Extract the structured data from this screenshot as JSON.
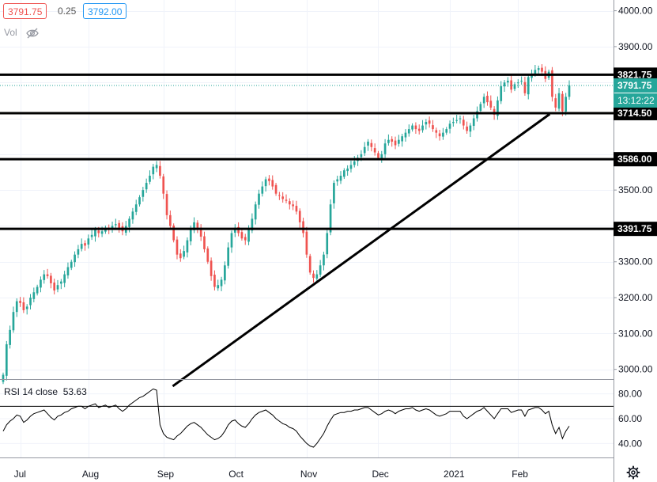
{
  "header": {
    "bid": "3791.75",
    "spread": "0.25",
    "ask": "3792.00",
    "volume_label": "Vol",
    "volume_icon": "eye-hidden-icon"
  },
  "rsi": {
    "label_name": "RSI 14 close",
    "label_value": "53.63",
    "ticks": [
      80,
      60,
      40
    ],
    "tick_labels": [
      "80.00",
      "60.00",
      "40.00"
    ],
    "upper_band": 70,
    "lower_band": 30
  },
  "colors": {
    "up": "#26a69a",
    "down": "#ef5350",
    "axis_text": "#131722",
    "last_price": "#26a69a",
    "rsi_line": "#000000",
    "level_line": "#000000"
  },
  "chart_data": {
    "type": "candlestick",
    "y_ticks": [
      4000,
      3900,
      3800,
      3700,
      3600,
      3500,
      3400,
      3300,
      3200,
      3100,
      3000
    ],
    "y_tick_labels": [
      "4000.00",
      "3900.00",
      "3800.00",
      "3700.00",
      "3600.00",
      "3500.00",
      "3400.00",
      "3300.00",
      "3200.00",
      "3100.00",
      "3000.00"
    ],
    "ylim": [
      2975,
      4030
    ],
    "x_labels": [
      "Jul",
      "Aug",
      "Sep",
      "Oct",
      "Nov",
      "Dec",
      "2021",
      "Feb"
    ],
    "x_label_positions": [
      5,
      25,
      47,
      68,
      89,
      110,
      131,
      151
    ],
    "horizontal_levels": [
      {
        "value": 3821.75,
        "label": "3821.75"
      },
      {
        "value": 3714.5,
        "label": "3714.50"
      },
      {
        "value": 3586.0,
        "label": "3586.00"
      },
      {
        "value": 3391.75,
        "label": "3391.75"
      }
    ],
    "trendline": {
      "from": {
        "bar": 50,
        "price": 2955
      },
      "to": {
        "bar": 160,
        "price": 3710
      }
    },
    "last_price": {
      "value": 3791.75,
      "label": "3791.75",
      "countdown": "13:12:22"
    },
    "closes": [
      2985,
      3070,
      3110,
      3160,
      3190,
      3185,
      3165,
      3175,
      3200,
      3215,
      3230,
      3250,
      3265,
      3260,
      3240,
      3220,
      3235,
      3245,
      3265,
      3285,
      3300,
      3320,
      3335,
      3350,
      3345,
      3365,
      3375,
      3390,
      3380,
      3385,
      3395,
      3390,
      3400,
      3405,
      3395,
      3385,
      3400,
      3420,
      3440,
      3460,
      3480,
      3500,
      3520,
      3540,
      3565,
      3570,
      3540,
      3490,
      3430,
      3400,
      3360,
      3320,
      3310,
      3330,
      3360,
      3390,
      3410,
      3395,
      3370,
      3335,
      3300,
      3260,
      3230,
      3235,
      3250,
      3290,
      3340,
      3380,
      3395,
      3380,
      3365,
      3360,
      3390,
      3420,
      3460,
      3490,
      3510,
      3530,
      3525,
      3510,
      3490,
      3485,
      3475,
      3470,
      3460,
      3455,
      3440,
      3410,
      3380,
      3320,
      3270,
      3255,
      3265,
      3290,
      3320,
      3380,
      3460,
      3520,
      3530,
      3540,
      3555,
      3560,
      3570,
      3580,
      3590,
      3600,
      3620,
      3635,
      3620,
      3605,
      3590,
      3600,
      3630,
      3640,
      3635,
      3625,
      3640,
      3650,
      3660,
      3670,
      3680,
      3670,
      3665,
      3680,
      3690,
      3685,
      3670,
      3660,
      3650,
      3660,
      3670,
      3685,
      3690,
      3695,
      3700,
      3680,
      3665,
      3680,
      3700,
      3720,
      3740,
      3760,
      3745,
      3730,
      3710,
      3750,
      3790,
      3800,
      3805,
      3780,
      3795,
      3800,
      3805,
      3770,
      3815,
      3825,
      3835,
      3840,
      3830,
      3810,
      3830,
      3760,
      3730,
      3770,
      3720,
      3760,
      3792
    ],
    "rsi_values": [
      50,
      55,
      58,
      60,
      63,
      62,
      57,
      59,
      62,
      64,
      65,
      66,
      67,
      64,
      61,
      59,
      62,
      63,
      65,
      66,
      68,
      69,
      70,
      70,
      68,
      70,
      71,
      72,
      69,
      70,
      71,
      69,
      70,
      71,
      68,
      66,
      68,
      71,
      73,
      75,
      77,
      78,
      80,
      82,
      84,
      83,
      55,
      48,
      45,
      44,
      43,
      46,
      48,
      51,
      54,
      56,
      57,
      55,
      53,
      50,
      47,
      45,
      43,
      44,
      46,
      50,
      55,
      58,
      59,
      56,
      54,
      53,
      56,
      60,
      63,
      65,
      66,
      67,
      65,
      63,
      60,
      58,
      56,
      55,
      53,
      52,
      50,
      46,
      43,
      40,
      38,
      37,
      40,
      44,
      48,
      54,
      59,
      63,
      64,
      65,
      65,
      66,
      66,
      67,
      67,
      68,
      69,
      69,
      67,
      65,
      63,
      64,
      66,
      67,
      66,
      64,
      66,
      67,
      68,
      68,
      69,
      67,
      66,
      67,
      68,
      67,
      65,
      63,
      62,
      63,
      64,
      66,
      66,
      66,
      66,
      62,
      60,
      62,
      64,
      66,
      67,
      69,
      66,
      63,
      60,
      64,
      68,
      68,
      68,
      65,
      66,
      67,
      67,
      62,
      67,
      68,
      69,
      69,
      67,
      64,
      66,
      55,
      48,
      53,
      44,
      50,
      54
    ]
  }
}
